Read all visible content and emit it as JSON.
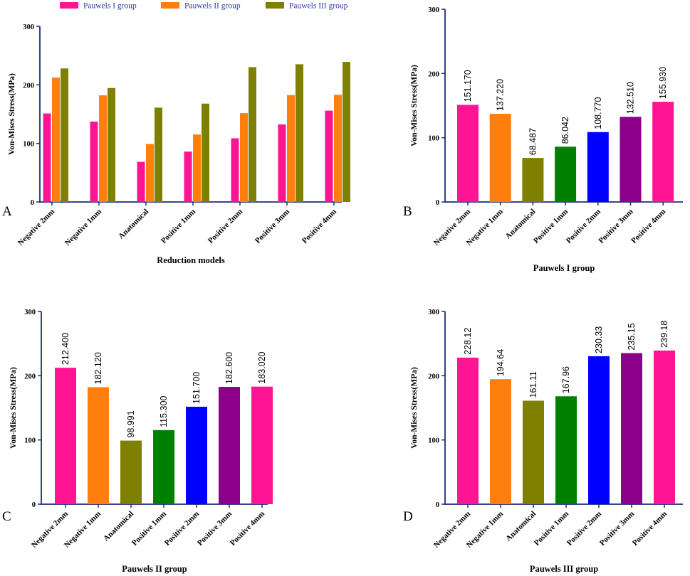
{
  "colors": {
    "axis": "#1f2a7a",
    "legend_text": "#2b3a9a",
    "series": [
      "#ff1493",
      "#ff7f0e",
      "#808000"
    ],
    "group_palette": [
      "#ff1493",
      "#ff7f0e",
      "#808000",
      "#008000",
      "#0000ff",
      "#8b008b",
      "#ff1493"
    ]
  },
  "legend": [
    "Pauwels I group",
    "Pauwels II group",
    "Pauwels III group"
  ],
  "chart_data": [
    {
      "id": "A",
      "type": "bar",
      "panel_label": "A",
      "ylabel": "Von-Mises Stress(MPa)",
      "xlabel": "Reduction models",
      "ylim": [
        0,
        300
      ],
      "yticks": [
        0,
        100,
        200,
        300
      ],
      "categories": [
        "Negative 2mm",
        "Negative 1mm",
        "Anatomical",
        "Positive 1mm",
        "Positive 2mm",
        "Positive 3mm",
        "Positive 4mm"
      ],
      "series": [
        {
          "name": "Pauwels I group",
          "values": [
            151.17,
            137.22,
            68.487,
            86.042,
            108.77,
            132.51,
            155.93
          ]
        },
        {
          "name": "Pauwels II group",
          "values": [
            212.4,
            182.12,
            98.991,
            115.3,
            151.7,
            182.6,
            183.02
          ]
        },
        {
          "name": "Pauwels III group",
          "values": [
            228.12,
            194.64,
            161.11,
            167.96,
            230.33,
            235.15,
            239.18
          ]
        }
      ]
    },
    {
      "id": "B",
      "type": "bar",
      "panel_label": "B",
      "ylabel": "Von-Mises Stress(MPa)",
      "xlabel": "Pauwels I group",
      "ylim": [
        0,
        300
      ],
      "yticks": [
        0,
        100,
        200,
        300
      ],
      "categories": [
        "Negative 2mm",
        "Negative 1mm",
        "Anatomical",
        "Positive 1mm",
        "Positive 2mm",
        "Positive 3mm",
        "Positive 4mm"
      ],
      "values": [
        151.17,
        137.22,
        68.487,
        86.042,
        108.77,
        132.51,
        155.93
      ],
      "data_labels": [
        "151.170",
        "137.220",
        "68.487",
        "86.042",
        "108.770",
        "132.510",
        "155.930"
      ]
    },
    {
      "id": "C",
      "type": "bar",
      "panel_label": "C",
      "ylabel": "Von-Mises Stress(MPa)",
      "xlabel": "Pauwels II group",
      "ylim": [
        0,
        300
      ],
      "yticks": [
        0,
        100,
        200,
        300
      ],
      "categories": [
        "Negative 2mm",
        "Negative 1mm",
        "Anatomical",
        "Positive 1mm",
        "Positive 2mm",
        "Positive 3mm",
        "Positive 4mm"
      ],
      "values": [
        212.4,
        182.12,
        98.991,
        115.3,
        151.7,
        182.6,
        183.02
      ],
      "data_labels": [
        "212.400",
        "182.120",
        "98.991",
        "115.300",
        "151.700",
        "182.600",
        "183.020"
      ]
    },
    {
      "id": "D",
      "type": "bar",
      "panel_label": "D",
      "ylabel": "Von-Mises Stress(MPa)",
      "xlabel": "Pauwels III group",
      "ylim": [
        0,
        300
      ],
      "yticks": [
        0,
        100,
        200,
        300
      ],
      "categories": [
        "Negative 2mm",
        "Negative 1mm",
        "Anatomical",
        "Positive 1mm",
        "Positive 2mm",
        "Positive 3mm",
        "Positive 4mm"
      ],
      "values": [
        228.12,
        194.64,
        161.11,
        167.96,
        230.33,
        235.15,
        239.18
      ],
      "data_labels": [
        "228.12",
        "194.64",
        "161.11",
        "167.96",
        "230.33",
        "235.15",
        "239.18"
      ]
    }
  ]
}
